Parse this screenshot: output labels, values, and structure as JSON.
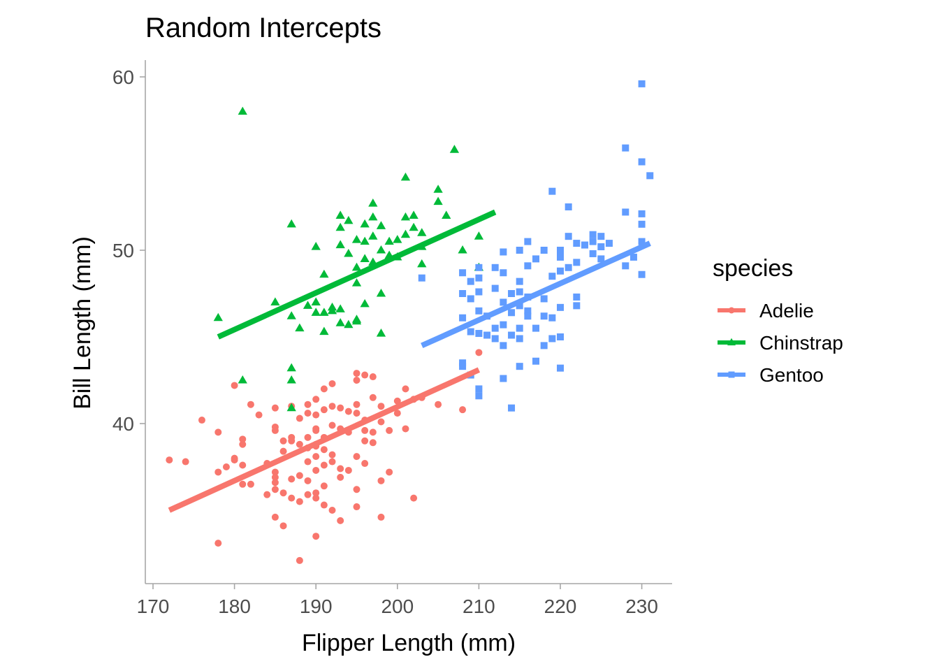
{
  "chart_data": {
    "type": "scatter",
    "title": "Random Intercepts",
    "xlabel": "Flipper Length (mm)",
    "ylabel": "Bill Length (mm)",
    "xlim": [
      169,
      234
    ],
    "ylim": [
      31,
      61
    ],
    "xticks": [
      "170",
      "180",
      "190",
      "200",
      "210",
      "220",
      "230"
    ],
    "yticks": [
      "40",
      "50",
      "60"
    ],
    "grid": false,
    "legend": {
      "title": "species",
      "position": "right"
    },
    "series": [
      {
        "name": "Adelie",
        "color": "#F8766D",
        "marker": "circle",
        "fit_line": {
          "x": [
            172,
            210
          ],
          "y": [
            35.0,
            43.1
          ]
        },
        "points": [
          [
            172,
            37.9
          ],
          [
            174,
            37.8
          ],
          [
            176,
            40.2
          ],
          [
            178,
            39.5
          ],
          [
            178,
            37.2
          ],
          [
            178,
            33.1
          ],
          [
            179,
            37.5
          ],
          [
            180,
            38.0
          ],
          [
            180,
            42.2
          ],
          [
            180,
            37.9
          ],
          [
            181,
            39.1
          ],
          [
            181,
            38.8
          ],
          [
            181,
            36.5
          ],
          [
            181,
            37.6
          ],
          [
            182,
            41.1
          ],
          [
            182,
            36.5
          ],
          [
            183,
            40.5
          ],
          [
            184,
            37.7
          ],
          [
            184,
            35.9
          ],
          [
            185,
            40.9
          ],
          [
            185,
            39.6
          ],
          [
            185,
            39.8
          ],
          [
            185,
            36.9
          ],
          [
            185,
            37.2
          ],
          [
            185,
            34.6
          ],
          [
            185,
            36.6
          ],
          [
            185,
            36.2
          ],
          [
            186,
            34.1
          ],
          [
            186,
            38.4
          ],
          [
            186,
            36.0
          ],
          [
            186,
            39.0
          ],
          [
            187,
            39.2
          ],
          [
            187,
            36.8
          ],
          [
            187,
            35.7
          ],
          [
            187,
            39.0
          ],
          [
            187,
            41.0
          ],
          [
            188,
            38.8
          ],
          [
            188,
            35.5
          ],
          [
            188,
            40.3
          ],
          [
            188,
            37.0
          ],
          [
            188,
            32.1
          ],
          [
            189,
            38.6
          ],
          [
            189,
            37.8
          ],
          [
            189,
            40.6
          ],
          [
            189,
            35.9
          ],
          [
            189,
            39.2
          ],
          [
            189,
            36.7
          ],
          [
            189,
            41.1
          ],
          [
            190,
            38.8
          ],
          [
            190,
            36.0
          ],
          [
            190,
            39.6
          ],
          [
            190,
            40.5
          ],
          [
            190,
            35.7
          ],
          [
            190,
            38.1
          ],
          [
            190,
            41.4
          ],
          [
            190,
            37.3
          ],
          [
            190,
            33.5
          ],
          [
            190,
            38.7
          ],
          [
            190,
            39.7
          ],
          [
            191,
            42.0
          ],
          [
            191,
            39.2
          ],
          [
            191,
            37.6
          ],
          [
            191,
            35.3
          ],
          [
            191,
            40.8
          ],
          [
            191,
            36.4
          ],
          [
            191,
            38.5
          ],
          [
            192,
            38.2
          ],
          [
            192,
            39.9
          ],
          [
            192,
            35.0
          ],
          [
            192,
            41.0
          ],
          [
            192,
            37.8
          ],
          [
            192,
            42.3
          ],
          [
            193,
            39.7
          ],
          [
            193,
            36.9
          ],
          [
            193,
            40.9
          ],
          [
            193,
            37.4
          ],
          [
            193,
            34.4
          ],
          [
            194,
            39.5
          ],
          [
            194,
            37.3
          ],
          [
            194,
            40.7
          ],
          [
            195,
            42.9
          ],
          [
            195,
            38.1
          ],
          [
            195,
            40.6
          ],
          [
            195,
            36.2
          ],
          [
            195,
            41.1
          ],
          [
            195,
            35.2
          ],
          [
            195,
            42.5
          ],
          [
            196,
            39.0
          ],
          [
            196,
            37.7
          ],
          [
            196,
            40.2
          ],
          [
            196,
            42.8
          ],
          [
            196,
            39.6
          ],
          [
            197,
            41.5
          ],
          [
            197,
            39.5
          ],
          [
            197,
            42.7
          ],
          [
            197,
            38.9
          ],
          [
            198,
            40.1
          ],
          [
            198,
            34.6
          ],
          [
            198,
            41.0
          ],
          [
            198,
            36.7
          ],
          [
            199,
            37.2
          ],
          [
            199,
            39.6
          ],
          [
            200,
            40.6
          ],
          [
            200,
            41.3
          ],
          [
            201,
            39.7
          ],
          [
            201,
            42.0
          ],
          [
            202,
            35.7
          ],
          [
            202,
            41.4
          ],
          [
            203,
            41.5
          ],
          [
            205,
            41.1
          ],
          [
            208,
            40.8
          ],
          [
            210,
            44.1
          ]
        ]
      },
      {
        "name": "Chinstrap",
        "color": "#00BA38",
        "marker": "triangle",
        "fit_line": {
          "x": [
            178,
            212
          ],
          "y": [
            45.0,
            52.2
          ]
        },
        "points": [
          [
            178,
            46.1
          ],
          [
            181,
            58.0
          ],
          [
            181,
            42.5
          ],
          [
            185,
            47.0
          ],
          [
            187,
            51.5
          ],
          [
            187,
            46.2
          ],
          [
            187,
            43.2
          ],
          [
            187,
            42.5
          ],
          [
            187,
            40.9
          ],
          [
            188,
            45.5
          ],
          [
            189,
            46.8
          ],
          [
            190,
            50.2
          ],
          [
            190,
            46.4
          ],
          [
            190,
            47.0
          ],
          [
            191,
            45.3
          ],
          [
            191,
            46.4
          ],
          [
            191,
            48.6
          ],
          [
            192,
            46.5
          ],
          [
            192,
            46.7
          ],
          [
            193,
            51.3
          ],
          [
            193,
            52.0
          ],
          [
            193,
            50.3
          ],
          [
            193,
            46.6
          ],
          [
            193,
            45.8
          ],
          [
            194,
            49.8
          ],
          [
            194,
            51.7
          ],
          [
            194,
            45.7
          ],
          [
            195,
            46.0
          ],
          [
            195,
            48.1
          ],
          [
            195,
            49.0
          ],
          [
            195,
            50.6
          ],
          [
            195,
            45.9
          ],
          [
            196,
            51.5
          ],
          [
            196,
            50.5
          ],
          [
            196,
            49.5
          ],
          [
            196,
            46.9
          ],
          [
            197,
            52.7
          ],
          [
            197,
            50.8
          ],
          [
            197,
            51.9
          ],
          [
            197,
            49.3
          ],
          [
            198,
            51.4
          ],
          [
            198,
            50.0
          ],
          [
            198,
            47.5
          ],
          [
            198,
            45.2
          ],
          [
            199,
            49.7
          ],
          [
            199,
            50.5
          ],
          [
            200,
            50.6
          ],
          [
            200,
            49.6
          ],
          [
            201,
            54.2
          ],
          [
            201,
            51.9
          ],
          [
            201,
            50.9
          ],
          [
            202,
            51.3
          ],
          [
            202,
            52.0
          ],
          [
            203,
            50.2
          ],
          [
            203,
            51.0
          ],
          [
            203,
            49.2
          ],
          [
            205,
            53.5
          ],
          [
            205,
            52.8
          ],
          [
            206,
            52.0
          ],
          [
            207,
            55.8
          ],
          [
            208,
            50.0
          ],
          [
            210,
            49.0
          ],
          [
            210,
            50.8
          ]
        ]
      },
      {
        "name": "Gentoo",
        "color": "#619CFF",
        "marker": "square",
        "fit_line": {
          "x": [
            203,
            231
          ],
          "y": [
            44.5,
            50.4
          ]
        },
        "points": [
          [
            203,
            48.4
          ],
          [
            208,
            48.7
          ],
          [
            208,
            43.3
          ],
          [
            208,
            46.1
          ],
          [
            208,
            43.5
          ],
          [
            208,
            47.5
          ],
          [
            209,
            47.2
          ],
          [
            209,
            45.3
          ],
          [
            209,
            48.2
          ],
          [
            209,
            42.8
          ],
          [
            210,
            46.5
          ],
          [
            210,
            45.2
          ],
          [
            210,
            48.4
          ],
          [
            210,
            42.0
          ],
          [
            210,
            41.6
          ],
          [
            210,
            49.0
          ],
          [
            210,
            47.6
          ],
          [
            211,
            45.1
          ],
          [
            211,
            46.2
          ],
          [
            212,
            45.5
          ],
          [
            212,
            47.8
          ],
          [
            212,
            44.9
          ],
          [
            212,
            49.0
          ],
          [
            213,
            47.0
          ],
          [
            213,
            44.5
          ],
          [
            213,
            45.7
          ],
          [
            213,
            48.7
          ],
          [
            213,
            49.9
          ],
          [
            213,
            42.6
          ],
          [
            214,
            46.4
          ],
          [
            214,
            47.5
          ],
          [
            214,
            45.1
          ],
          [
            214,
            40.9
          ],
          [
            215,
            48.2
          ],
          [
            215,
            46.8
          ],
          [
            215,
            50.0
          ],
          [
            215,
            45.5
          ],
          [
            215,
            44.9
          ],
          [
            215,
            47.6
          ],
          [
            215,
            43.3
          ],
          [
            216,
            50.5
          ],
          [
            216,
            49.1
          ],
          [
            216,
            46.5
          ],
          [
            216,
            46.2
          ],
          [
            216,
            47.3
          ],
          [
            217,
            49.5
          ],
          [
            217,
            45.5
          ],
          [
            217,
            43.6
          ],
          [
            218,
            46.2
          ],
          [
            218,
            47.2
          ],
          [
            218,
            44.5
          ],
          [
            218,
            50.0
          ],
          [
            219,
            48.5
          ],
          [
            219,
            53.4
          ],
          [
            219,
            46.1
          ],
          [
            219,
            44.9
          ],
          [
            220,
            46.7
          ],
          [
            220,
            49.6
          ],
          [
            220,
            50.0
          ],
          [
            220,
            48.8
          ],
          [
            220,
            45.0
          ],
          [
            220,
            43.2
          ],
          [
            221,
            50.8
          ],
          [
            221,
            52.5
          ],
          [
            221,
            49.0
          ],
          [
            222,
            47.3
          ],
          [
            222,
            46.8
          ],
          [
            222,
            50.4
          ],
          [
            222,
            49.3
          ],
          [
            223,
            50.3
          ],
          [
            224,
            50.9
          ],
          [
            224,
            49.8
          ],
          [
            224,
            50.5
          ],
          [
            225,
            50.2
          ],
          [
            225,
            50.8
          ],
          [
            225,
            49.5
          ],
          [
            226,
            50.4
          ],
          [
            228,
            55.9
          ],
          [
            228,
            52.2
          ],
          [
            228,
            49.1
          ],
          [
            229,
            49.6
          ],
          [
            230,
            59.6
          ],
          [
            230,
            55.1
          ],
          [
            230,
            52.1
          ],
          [
            230,
            51.5
          ],
          [
            230,
            50.5
          ],
          [
            230,
            48.6
          ],
          [
            231,
            54.3
          ]
        ]
      }
    ]
  }
}
